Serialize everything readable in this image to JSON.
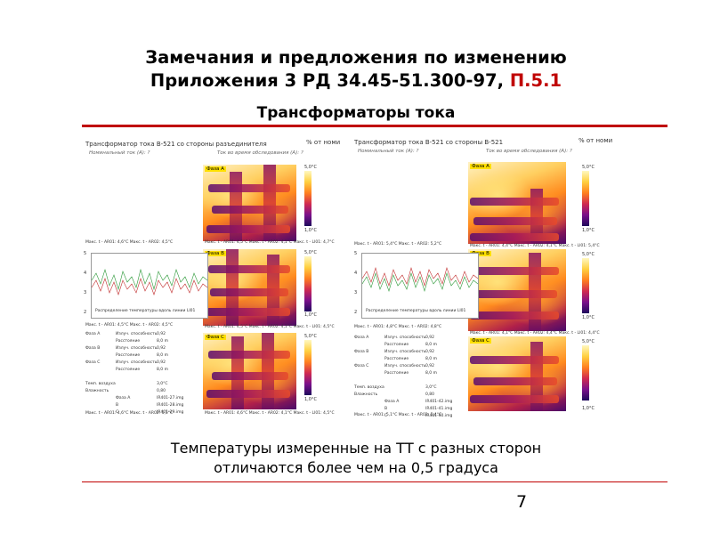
{
  "title": {
    "line1": "Замечания и предложения по изменению",
    "line2_prefix": "Приложения  3  РД 34.45-51.300-97, ",
    "line2_accent": "П.5.1"
  },
  "subtitle": "Трансформаторы тока",
  "caption": {
    "line1": "Температуры измеренные на ТТ с разных сторон",
    "line2": "отличаются более чем на 0,5 градуса"
  },
  "page_number": "7",
  "colors": {
    "accent": "#c00000"
  },
  "left_panel": {
    "header": "Трансформатор тока  В-521  со стороны разъединителя",
    "header_right": "% от номи",
    "subheader": "Номинальный ток (А):  ?",
    "subheader2": "Ток во время обследования (А):  ?",
    "phases": [
      {
        "tag": "Фаза А",
        "readout": "Макс. t - AR01: 4,5°C   Макс. t - AR02: 4,1°C   Макс. t - LI01: 4,7°C"
      },
      {
        "tag": "Фаза В",
        "readout": "Макс. t - AR01: 4,5°C   Макс. t - AR02: 4,1°C   Макс. t - LI01: 4,5°C"
      },
      {
        "tag": "Фаза С",
        "readout": "Макс. t - AR01: 4,6°C   Макс. t - AR02: 4,1°C   Макс. t - LI01: 4,5°C"
      }
    ],
    "top_left_readout": "Макс. t - AR01: 4,6°C   Макс. t - AR02: 4,5°C",
    "graph_label": "Распределение температуры вдоль линии LI01",
    "graph_readout": "Макс. t - AR01: 4,5°C   Макс. t - AR02: 4,5°C",
    "bottom_readout": "Макс. t - AR01: 4,6°C   Макс. t - AR02: 5,1°C",
    "table": [
      [
        "Фаза А",
        "Излуч. способность",
        "0,92"
      ],
      [
        "",
        "Расстояние",
        "8,0 m"
      ],
      [
        "Фаза В",
        "Излуч. способность",
        "0,92"
      ],
      [
        "",
        "Расстояние",
        "8,0 m"
      ],
      [
        "Фаза С",
        "Излуч. способность",
        "0,92"
      ],
      [
        "",
        "Расстояние",
        "8,0 m"
      ],
      [
        "",
        "",
        ""
      ],
      [
        "Темп. воздуха",
        "",
        "3,0°C"
      ],
      [
        "Влажность",
        "",
        "0,80"
      ],
      [
        "",
        "Фаза А",
        "IR401-27.img"
      ],
      [
        "",
        "B",
        "IR401-28.img"
      ],
      [
        "",
        "C",
        "IR401-29.img"
      ]
    ],
    "scale_top": "5,0°C",
    "scale_bottom": "1,0°C",
    "scale_ticks": [
      "5",
      "4",
      "3",
      "2"
    ]
  },
  "right_panel": {
    "header": "Трансформатор тока  В-521  со стороны В-521",
    "header_right": "% от номи",
    "subheader": "Номинальный ток (А):  ?",
    "subheader2": "Ток во время обследования (А):  ?",
    "phases": [
      {
        "tag": "Фаза А",
        "readout": "Макс. t - AR01: 4,4°C   Макс. t - AR02: 4,1°C   Макс. t - LI01: 5,4°C"
      },
      {
        "tag": "Фаза В",
        "readout": "Макс. t - AR01: 4,1°C   Макс. t - AR02: 4,4°C   Макс. t - LI01: 4,4°C"
      },
      {
        "tag": "Фаза С",
        "readout": "Макс. t - AR01: 4,4°C   Макс. t - AR02: 4,4°C   Макс. t - LI01: 4,4°C"
      }
    ],
    "top_left_readout": "Макс. t - AR01: 5,4°C   Макс. t - AR02: 5,2°C",
    "graph_label": "Распределение температуры вдоль линии LI01",
    "graph_readout": "Макс. t - AR01: 4,8°C   Макс. t - AR02: 4,8°C",
    "bottom_readout": "Макс. t - AR01: 5,1°C   Макс. t - AR02: 5,4°C",
    "table": [
      [
        "Фаза А",
        "Излуч. способность",
        "0,92"
      ],
      [
        "",
        "Расстояние",
        "8,0 m"
      ],
      [
        "Фаза В",
        "Излуч. способность",
        "0,92"
      ],
      [
        "",
        "Расстояние",
        "8,0 m"
      ],
      [
        "Фаза С",
        "Излуч. способность",
        "0,92"
      ],
      [
        "",
        "Расстояние",
        "8,0 m"
      ],
      [
        "",
        "",
        ""
      ],
      [
        "Темп. воздуха",
        "",
        "3,0°C"
      ],
      [
        "Влажность",
        "",
        "0,80"
      ],
      [
        "",
        "Фаза А",
        "IR401-42.img"
      ],
      [
        "",
        "B",
        "IR401-41.img"
      ],
      [
        "",
        "C",
        "IR401-40.img"
      ]
    ],
    "scale_top": "5,0°C",
    "scale_bottom": "1,0°C",
    "scale_ticks": [
      "5",
      "4",
      "3",
      "2"
    ]
  }
}
